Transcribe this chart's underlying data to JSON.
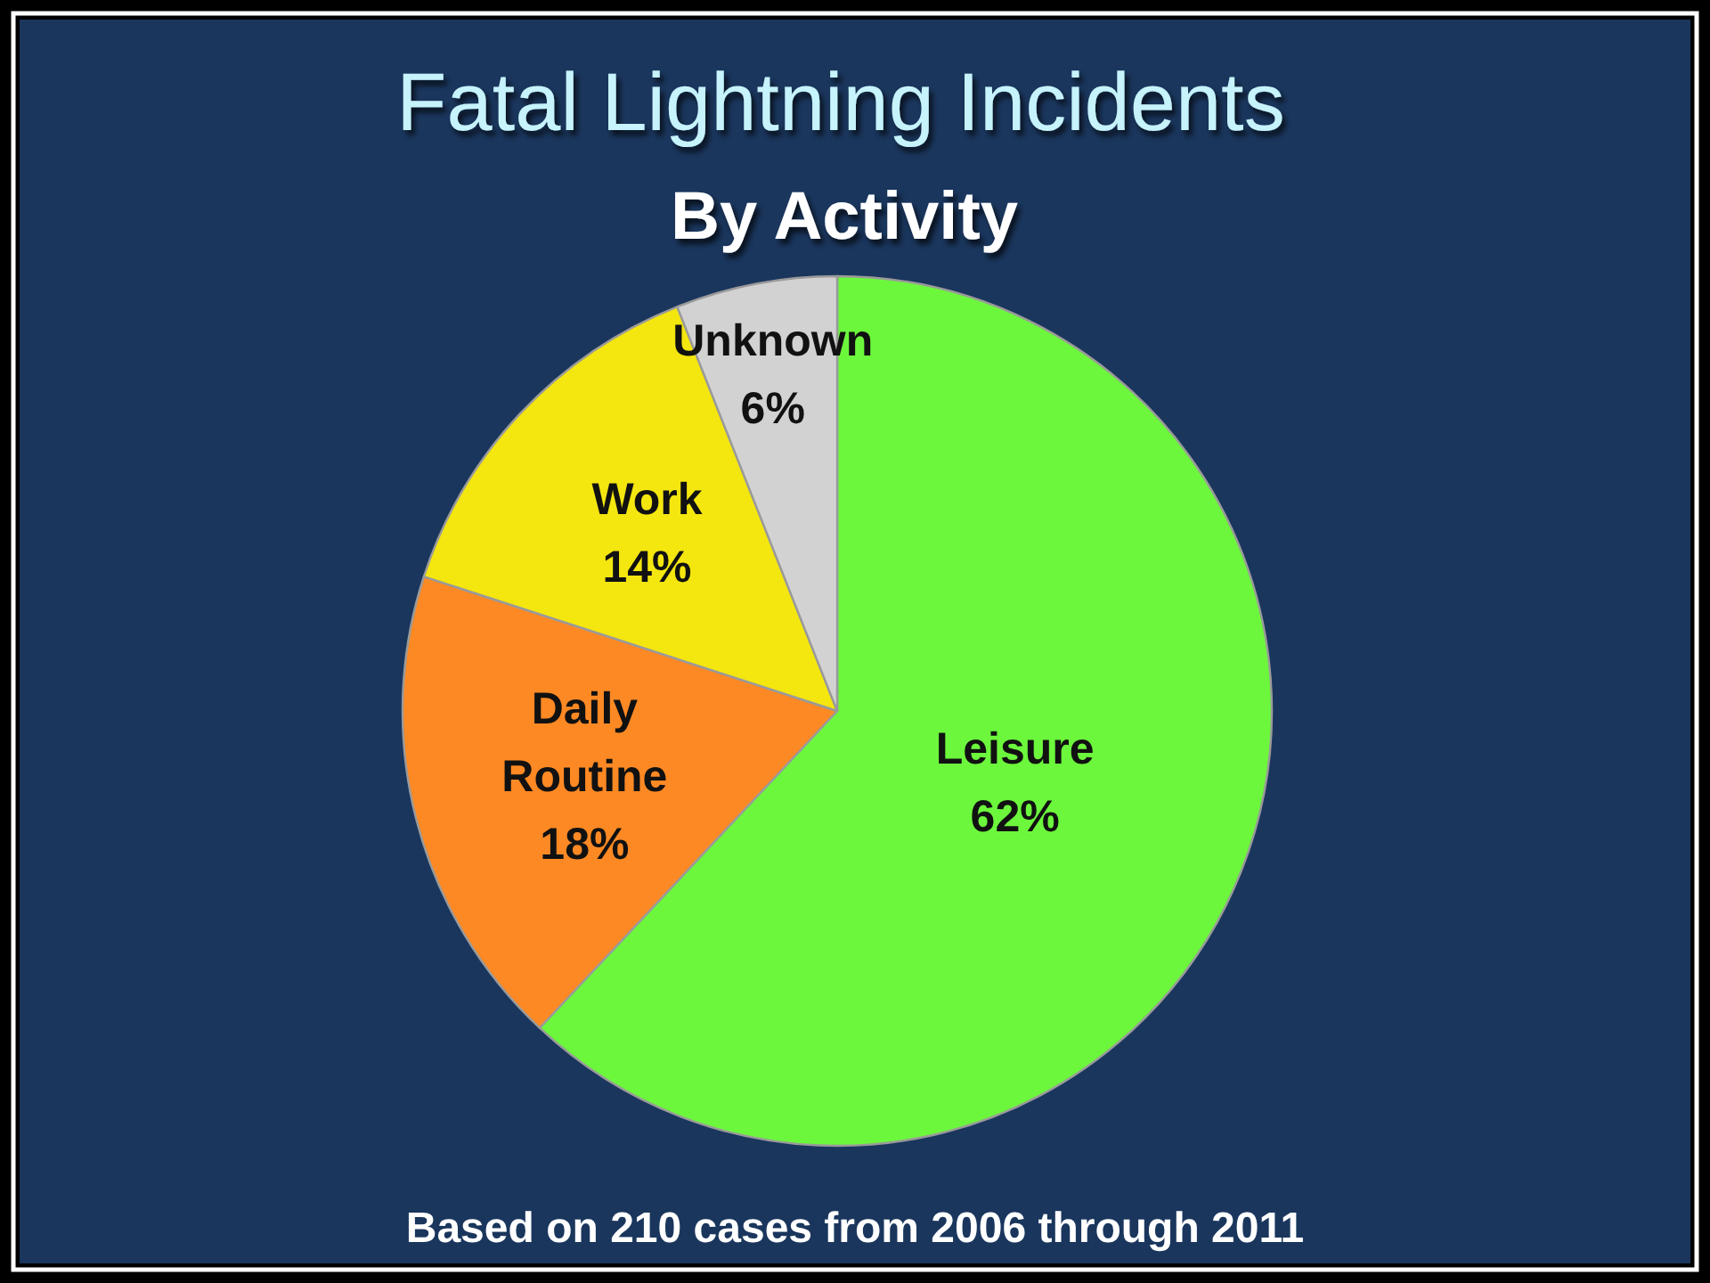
{
  "chart_data": {
    "type": "pie",
    "title": "Fatal Lightning Incidents",
    "subtitle": "By Activity",
    "categories": [
      "Leisure",
      "Daily Routine",
      "Work",
      "Unknown"
    ],
    "values": [
      62,
      18,
      14,
      6
    ],
    "colors": [
      "#6cf73c",
      "#fd8924",
      "#f4e60f",
      "#d2d2d2"
    ],
    "value_labels": [
      "62%",
      "18%",
      "14%",
      "6%"
    ],
    "annotations": [
      "Based on 210 cases from 2006 through 2011"
    ]
  }
}
